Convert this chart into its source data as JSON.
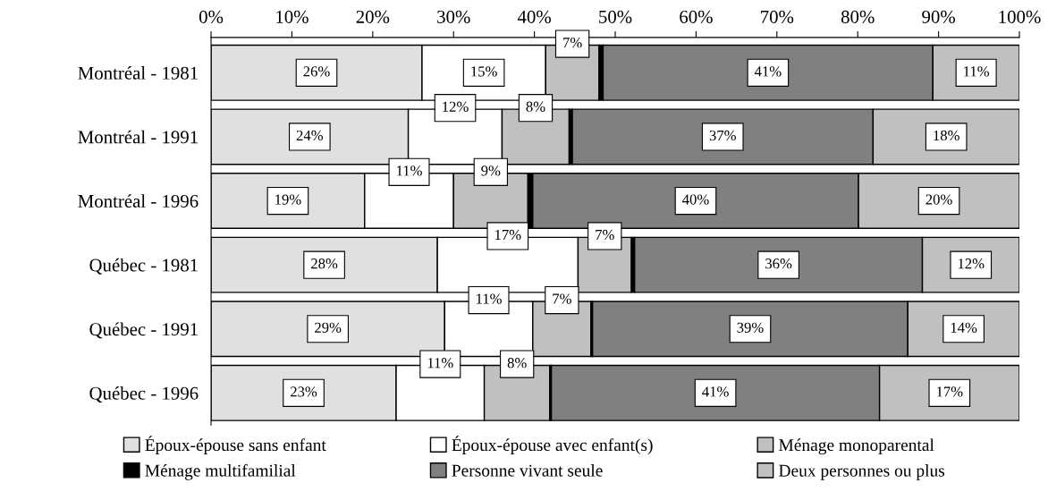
{
  "chart_data": {
    "type": "bar",
    "orientation": "horizontal",
    "stacked": true,
    "categories": [
      "Montréal - 1981",
      "Montréal - 1991",
      "Montréal - 1996",
      "Québec - 1981",
      "Québec - 1991",
      "Québec - 1996"
    ],
    "series": [
      {
        "name": "Époux-épouse sans enfant",
        "color": "#e0e0e0",
        "values": [
          26.1,
          24.4,
          19.0,
          28.0,
          28.9,
          22.9
        ],
        "value_labels": [
          "26%",
          "24%",
          "19%",
          "28%",
          "29%",
          "23%"
        ]
      },
      {
        "name": "Époux-épouse avec enfant(s)",
        "color": "#ffffff",
        "values": [
          15.3,
          11.6,
          11.0,
          17.4,
          10.9,
          10.9
        ],
        "value_labels": [
          "15%",
          "12%",
          "11%",
          "17%",
          "11%",
          "11%"
        ]
      },
      {
        "name": "Ménage monoparental",
        "color": "#c0c0c0",
        "values": [
          6.6,
          8.3,
          9.2,
          6.6,
          7.2,
          8.1
        ],
        "value_labels": [
          "7%",
          "8%",
          "9%",
          "7%",
          "7%",
          "8%"
        ]
      },
      {
        "name": "Ménage multifamilial",
        "color": "#000000",
        "values": [
          0.5,
          0.4,
          0.6,
          0.4,
          0.2,
          0.2
        ]
      },
      {
        "name": "Personne vivant seule",
        "color": "#808080",
        "values": [
          40.8,
          37.2,
          40.3,
          35.6,
          39.0,
          40.6
        ],
        "value_labels": [
          "41%",
          "37%",
          "40%",
          "36%",
          "39%",
          "41%"
        ]
      },
      {
        "name": "Deux personnes ou plus",
        "color": "#c0c0c0",
        "values": [
          10.7,
          18.1,
          19.9,
          12.0,
          13.8,
          17.3
        ],
        "value_labels": [
          "11%",
          "18%",
          "20%",
          "12%",
          "14%",
          "17%"
        ]
      }
    ],
    "xlim": [
      0,
      100
    ],
    "xticks": [
      {
        "value": 0,
        "label": "0%"
      },
      {
        "value": 10,
        "label": "10%"
      },
      {
        "value": 20,
        "label": "20%"
      },
      {
        "value": 30,
        "label": "30%"
      },
      {
        "value": 40,
        "label": "40%"
      },
      {
        "value": 50,
        "label": "50%"
      },
      {
        "value": 60,
        "label": "60%"
      },
      {
        "value": 70,
        "label": "70%"
      },
      {
        "value": 80,
        "label": "80%"
      },
      {
        "value": 90,
        "label": "90%"
      },
      {
        "value": 100,
        "label": "100%"
      }
    ],
    "grid": false,
    "legend": "bottom"
  }
}
